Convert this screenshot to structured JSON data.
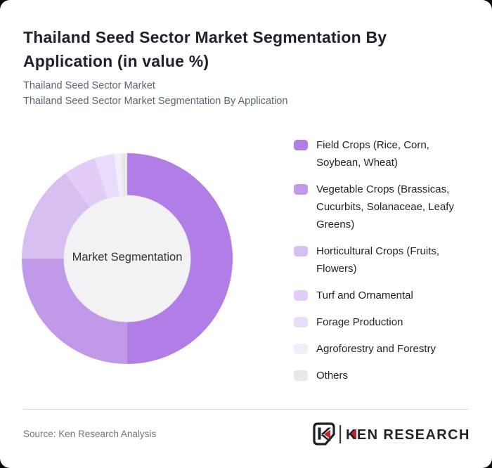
{
  "card": {
    "title": "Thailand Seed Sector Market Segmentation By Application (in value %)",
    "subtitle_line1": "Thailand Seed Sector Market",
    "subtitle_line2": "Thailand Seed Sector Market Segmentation By Application",
    "source": "Source: Ken Research Analysis",
    "logo_text": "KEN RESEARCH",
    "logo_red": "#c4232c",
    "logo_dark": "#23232b"
  },
  "chart_data": {
    "type": "pie",
    "variant": "donut",
    "title": "Thailand Seed Sector Market Segmentation By Application (in value %)",
    "center_label": "Market Segmentation",
    "legend_position": "right",
    "start_angle_deg": 0,
    "direction": "clockwise",
    "inner_circle_color": "#f2f2f4",
    "inner_circle_edge": "#e8e8ec",
    "segments": [
      {
        "label": "Field Crops (Rice, Corn, Soybean, Wheat)",
        "value": 50,
        "color": "#b07ee6"
      },
      {
        "label": "Vegetable Crops (Brassicas, Cucurbits, Solanaceae, Leafy Greens)",
        "value": 25,
        "color": "#c099e9"
      },
      {
        "label": "Horticultural Crops (Fruits, Flowers)",
        "value": 15,
        "color": "#d8bff2"
      },
      {
        "label": "Turf and Ornamental",
        "value": 5,
        "color": "#e1cdf5"
      },
      {
        "label": "Forage Production",
        "value": 3,
        "color": "#e9dcf8"
      },
      {
        "label": "Agroforestry and Forestry",
        "value": 1,
        "color": "#f3edfb"
      },
      {
        "label": "Others",
        "value": 1,
        "color": "#e9e7ea"
      }
    ]
  }
}
